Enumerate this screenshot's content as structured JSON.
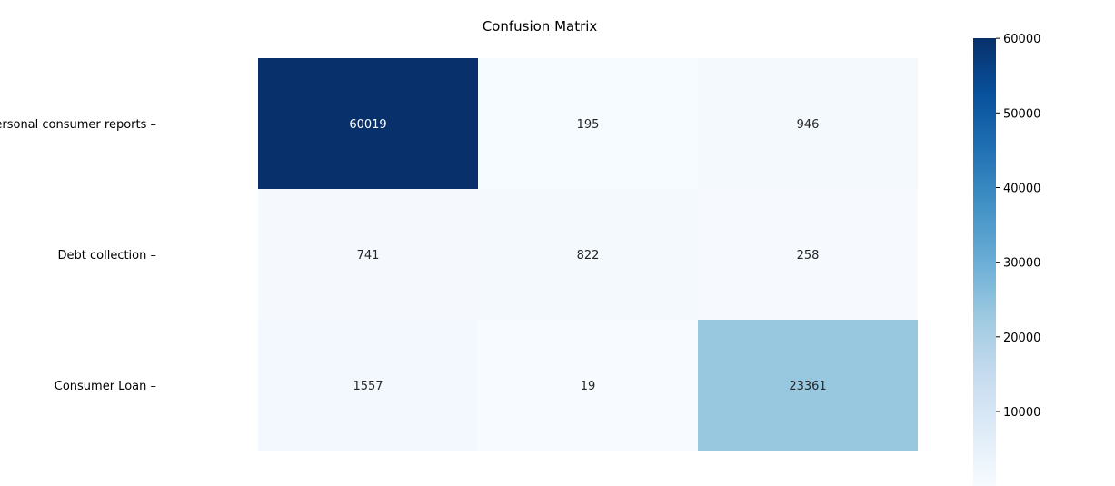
{
  "chart_data": {
    "type": "heatmap",
    "title": "Confusion Matrix",
    "xlabel": "",
    "ylabel": "",
    "row_labels": [
      "Credit reporting, credit repair services, or other personal consumer reports",
      "Debt collection",
      "Consumer Loan"
    ],
    "col_labels": [],
    "values": [
      [
        60019,
        195,
        946
      ],
      [
        741,
        822,
        258
      ],
      [
        1557,
        19,
        23361
      ]
    ],
    "colormap": "Blues",
    "colorbar": {
      "min": 19,
      "max": 60019,
      "ticks": [
        10000,
        20000,
        30000,
        40000,
        50000,
        60000
      ],
      "tick_labels": [
        "10000",
        "20000",
        "30000",
        "40000",
        "50000",
        "60000"
      ]
    }
  }
}
